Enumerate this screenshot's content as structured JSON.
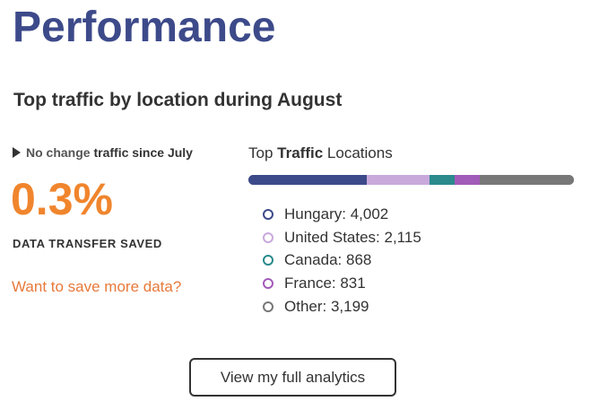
{
  "header": {
    "title": "Performance"
  },
  "section": {
    "heading": "Top traffic by location during August"
  },
  "summary": {
    "change_strong": "No change",
    "change_rest": "traffic since July",
    "percent": "0.3%",
    "stat_label": "DATA TRANSFER SAVED",
    "link_label": "Want to save more data?"
  },
  "locations": {
    "title_prefix": "Top",
    "title_bold": "Traffic",
    "title_suffix": "Locations",
    "items": [
      {
        "label": "Hungary: 4,002",
        "name": "Hungary",
        "value": 4002,
        "color": "#3d4a8a"
      },
      {
        "label": "United States: 2,115",
        "name": "United States",
        "value": 2115,
        "color": "#c9a9dc"
      },
      {
        "label": "Canada: 868",
        "name": "Canada",
        "value": 868,
        "color": "#2a8a8c"
      },
      {
        "label": "France: 831",
        "name": "France",
        "value": 831,
        "color": "#a15bb8"
      },
      {
        "label": "Other: 3,199",
        "name": "Other",
        "value": 3199,
        "color": "#777777"
      }
    ]
  },
  "actions": {
    "analytics_button": "View my full analytics"
  }
}
